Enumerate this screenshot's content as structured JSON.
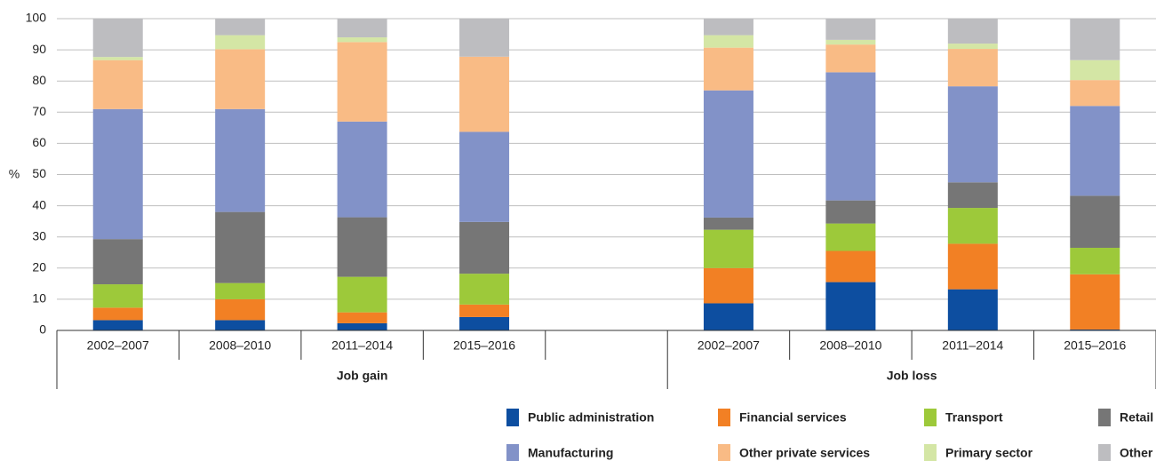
{
  "chart_data": {
    "type": "stacked_bar",
    "y_label": "%",
    "categories": [
      "2002–2007",
      "2008–2010",
      "2011–2014",
      "2015–2016",
      null,
      "2002–2007",
      "2008–2010",
      "2011–2014",
      "2015–2016"
    ],
    "groups": [
      "Job gain",
      "Job loss"
    ],
    "ylim": [
      0,
      100
    ],
    "yticks": [
      0,
      10,
      20,
      30,
      40,
      50,
      60,
      70,
      80,
      90,
      100
    ],
    "grid": true,
    "series": [
      {
        "name": "Public administration",
        "color": "#0d4ea0",
        "values": [
          3.3,
          3.3,
          2.3,
          4.3,
          null,
          8.7,
          15.5,
          13.2,
          0.3
        ]
      },
      {
        "name": "Financial services",
        "color": "#f28024",
        "values": [
          4,
          6.7,
          3.5,
          4,
          null,
          11.3,
          10,
          14.6,
          17.7
        ]
      },
      {
        "name": "Transport",
        "color": "#9dc93a",
        "values": [
          7.5,
          5.2,
          11.4,
          9.9,
          null,
          12.3,
          8.8,
          11.5,
          8.5
        ]
      },
      {
        "name": "Retail",
        "color": "#767676",
        "values": [
          14.5,
          22.8,
          19.1,
          16.6,
          null,
          3.9,
          7.4,
          8.2,
          16.7
        ]
      },
      {
        "name": "Manufacturing",
        "color": "#8292c8",
        "values": [
          41.7,
          33,
          30.7,
          28.9,
          null,
          40.8,
          41.1,
          30.8,
          28.8
        ]
      },
      {
        "name": "Other private services",
        "color": "#f9bb85",
        "values": [
          15.7,
          19.2,
          25.5,
          24.1,
          null,
          13.7,
          8.9,
          12,
          8.3
        ]
      },
      {
        "name": "Primary sector",
        "color": "#d4e6a5",
        "values": [
          1,
          4.5,
          1.5,
          0,
          null,
          4,
          1.5,
          1.7,
          6.4
        ]
      },
      {
        "name": "Other",
        "color": "#bdbdc0",
        "values": [
          12.3,
          5.3,
          6,
          12.2,
          null,
          5.3,
          6.8,
          8,
          13.3
        ]
      }
    ]
  }
}
